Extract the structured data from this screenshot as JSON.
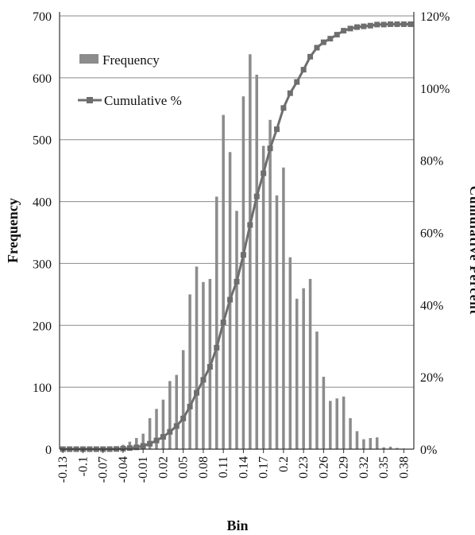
{
  "chart_data": {
    "type": "bar",
    "title": "",
    "xlabel": "Bin",
    "ylabel": "Frequency",
    "y2label": "Cumulative Percent",
    "ylim": [
      0,
      700
    ],
    "y2lim": [
      0,
      1.2
    ],
    "yticks": [
      "0",
      "100",
      "200",
      "300",
      "400",
      "500",
      "600",
      "700"
    ],
    "y2ticks": [
      "0%",
      "20%",
      "40%",
      "60%",
      "80%",
      "100%",
      "120%"
    ],
    "xtick_labels": [
      "-0.13",
      "-0.1",
      "-0.07",
      "-0.04",
      "-0.01",
      "0.02",
      "0.05",
      "0.08",
      "0.11",
      "0.14",
      "0.17",
      "0.2",
      "0.23",
      "0.26",
      "0.29",
      "0.32",
      "0.35",
      "0.38"
    ],
    "categories": [
      "-0.13",
      "-0.12",
      "-0.11",
      "-0.1",
      "-0.09",
      "-0.08",
      "-0.07",
      "-0.06",
      "-0.05",
      "-0.04",
      "-0.03",
      "-0.02",
      "-0.01",
      "0",
      "0.01",
      "0.02",
      "0.03",
      "0.04",
      "0.05",
      "0.06",
      "0.07",
      "0.08",
      "0.09",
      "0.1",
      "0.11",
      "0.12",
      "0.13",
      "0.14",
      "0.15",
      "0.16",
      "0.17",
      "0.18",
      "0.19",
      "0.2",
      "0.21",
      "0.22",
      "0.23",
      "0.24",
      "0.25",
      "0.26",
      "0.27",
      "0.28",
      "0.29",
      "0.3",
      "0.31",
      "0.32",
      "0.33",
      "0.34",
      "0.35",
      "0.36",
      "0.37",
      "0.38",
      "0.39"
    ],
    "grid": true,
    "legend_position": "top-left",
    "series": [
      {
        "name": "Frequency",
        "type": "bar",
        "axis": "left",
        "color": "#8c8c8c",
        "values": [
          0,
          0,
          0,
          0,
          0,
          0,
          0,
          1,
          3,
          7,
          12,
          18,
          25,
          50,
          65,
          80,
          110,
          120,
          160,
          250,
          295,
          270,
          275,
          408,
          540,
          480,
          385,
          570,
          638,
          605,
          490,
          532,
          410,
          455,
          310,
          243,
          260,
          275,
          190,
          117,
          78,
          82,
          85,
          50,
          29,
          16,
          18,
          19,
          3,
          4,
          2,
          1,
          0
        ]
      },
      {
        "name": "Cumulative %",
        "type": "line",
        "axis": "right",
        "color": "#6e6e6e",
        "values": [
          0,
          0,
          0,
          0,
          0,
          0,
          0,
          0.0001,
          0.0005,
          0.0014,
          0.003,
          0.005,
          0.009,
          0.015,
          0.024,
          0.034,
          0.048,
          0.064,
          0.085,
          0.118,
          0.156,
          0.192,
          0.228,
          0.281,
          0.351,
          0.414,
          0.464,
          0.538,
          0.621,
          0.7,
          0.764,
          0.833,
          0.886,
          0.945,
          0.986,
          1.017,
          1.051,
          1.087,
          1.112,
          1.127,
          1.137,
          1.148,
          1.159,
          1.165,
          1.169,
          1.171,
          1.173,
          1.176,
          1.176,
          1.177,
          1.177,
          1.177,
          1.177
        ]
      }
    ]
  }
}
